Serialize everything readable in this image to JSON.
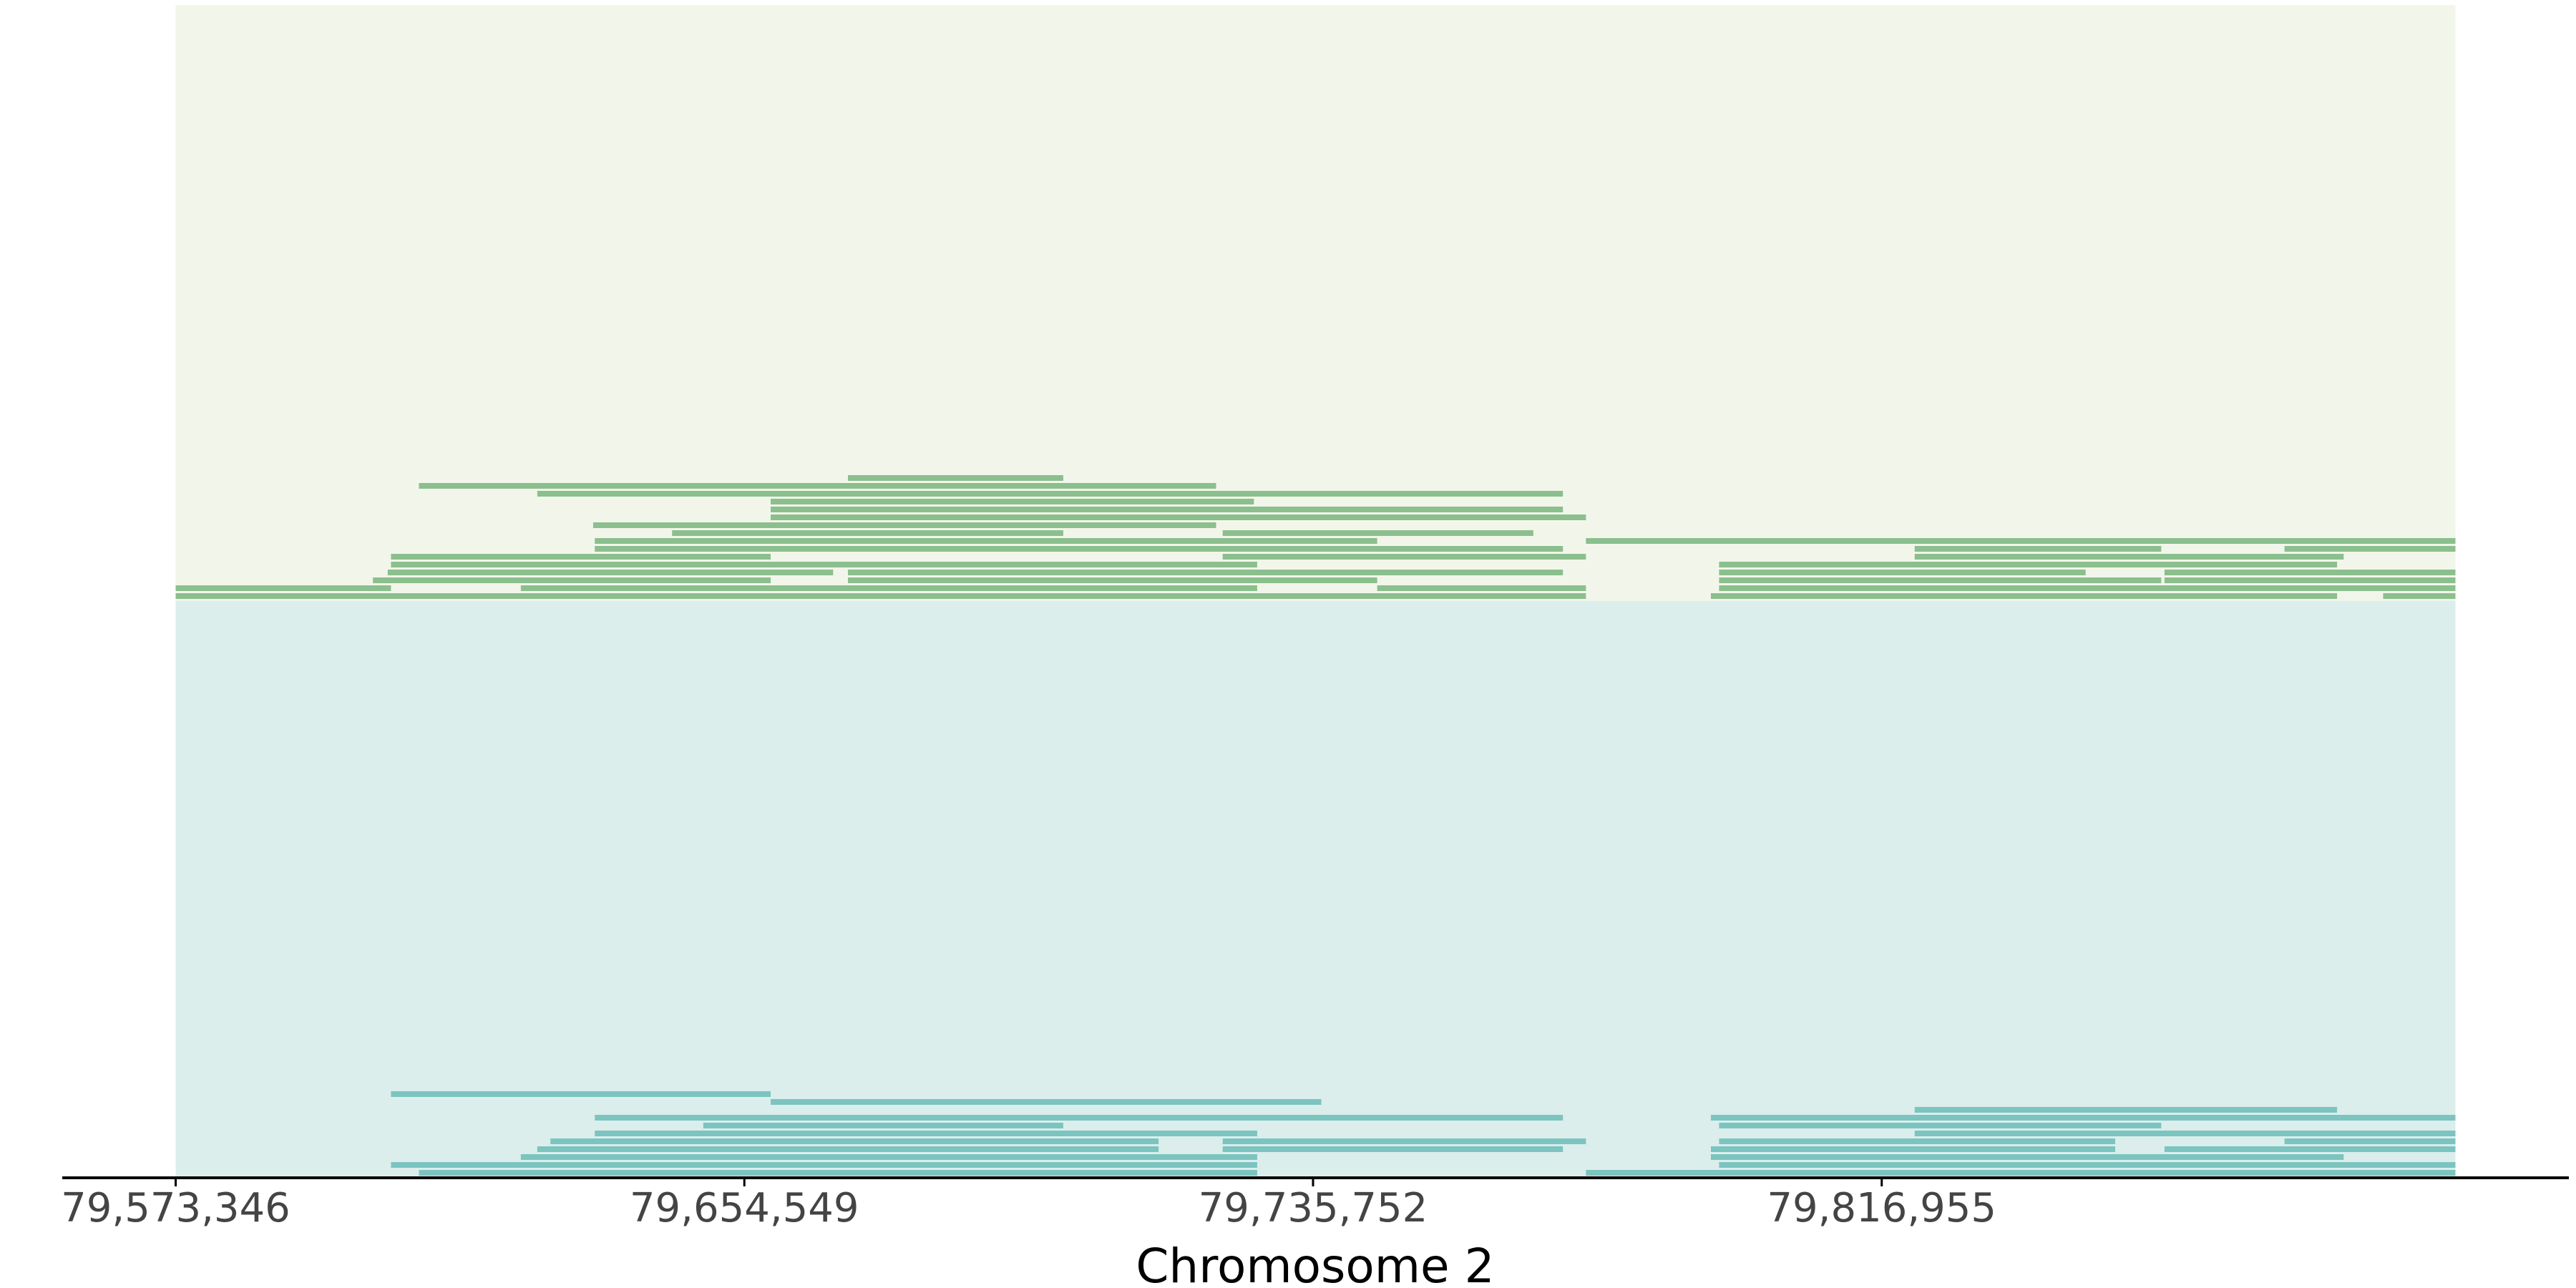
{
  "chart_data": {
    "type": "pileup",
    "xlabel": "Chromosome 2",
    "xlim": [
      79557152,
      79915069
    ],
    "region": [
      79573346,
      79898875
    ],
    "xticks": [
      {
        "value": 79573346,
        "label": "79,573,346"
      },
      {
        "value": 79654549,
        "label": "79,654,549"
      },
      {
        "value": 79735752,
        "label": "79,735,752"
      },
      {
        "value": 79816955,
        "label": "79,816,955"
      }
    ],
    "series": [
      {
        "color": "#8bbf8d",
        "background": "#f2f6ea",
        "starts": [
          79573346,
          79573346,
          79601510,
          79603622,
          79604092,
          79604092,
          79622633,
          79633195,
          79633195,
          79644225,
          79632960,
          79658307,
          79658307,
          79658307,
          79669338,
          79669338,
          79722850,
          79722850,
          79744912,
          79792556,
          79793729,
          79793729,
          79793729,
          79793729,
          79821659,
          79821659,
          79857333,
          79857333,
          79874466,
          79888548,
          79624980,
          79608082,
          79774719,
          79669338
        ],
        "ends": [
          79774719,
          79604092,
          79658307,
          79667226,
          79727779,
          79658307,
          79727779,
          79771433,
          79744912,
          79700084,
          79721911,
          79774719,
          79771433,
          79727309,
          79744912,
          79771433,
          79774719,
          79767208,
          79774719,
          79881977,
          79898875,
          79856864,
          79846067,
          79881977,
          79882916,
          79856864,
          79898875,
          79898875,
          79898875,
          79898875,
          79771433,
          79721911,
          79898875,
          79700084
        ]
      },
      {
        "color": "#7cc4c0",
        "background": "#dbeeec",
        "starts": [
          79608082,
          79604092,
          79622633,
          79624980,
          79626858,
          79633195,
          79648685,
          79633195,
          79722850,
          79722850,
          79774719,
          79793729,
          79792556,
          79792556,
          79793729,
          79821659,
          79793729,
          79857333,
          79874466,
          79792556,
          79821659,
          79658307,
          79604092
        ],
        "ends": [
          79727779,
          79727779,
          79727779,
          79713697,
          79713697,
          79727779,
          79700084,
          79771433,
          79771433,
          79774719,
          79898875,
          79898875,
          79882916,
          79850292,
          79850292,
          79898875,
          79856864,
          79898875,
          79898875,
          79898875,
          79881977,
          79736932,
          79658307
        ]
      }
    ]
  }
}
